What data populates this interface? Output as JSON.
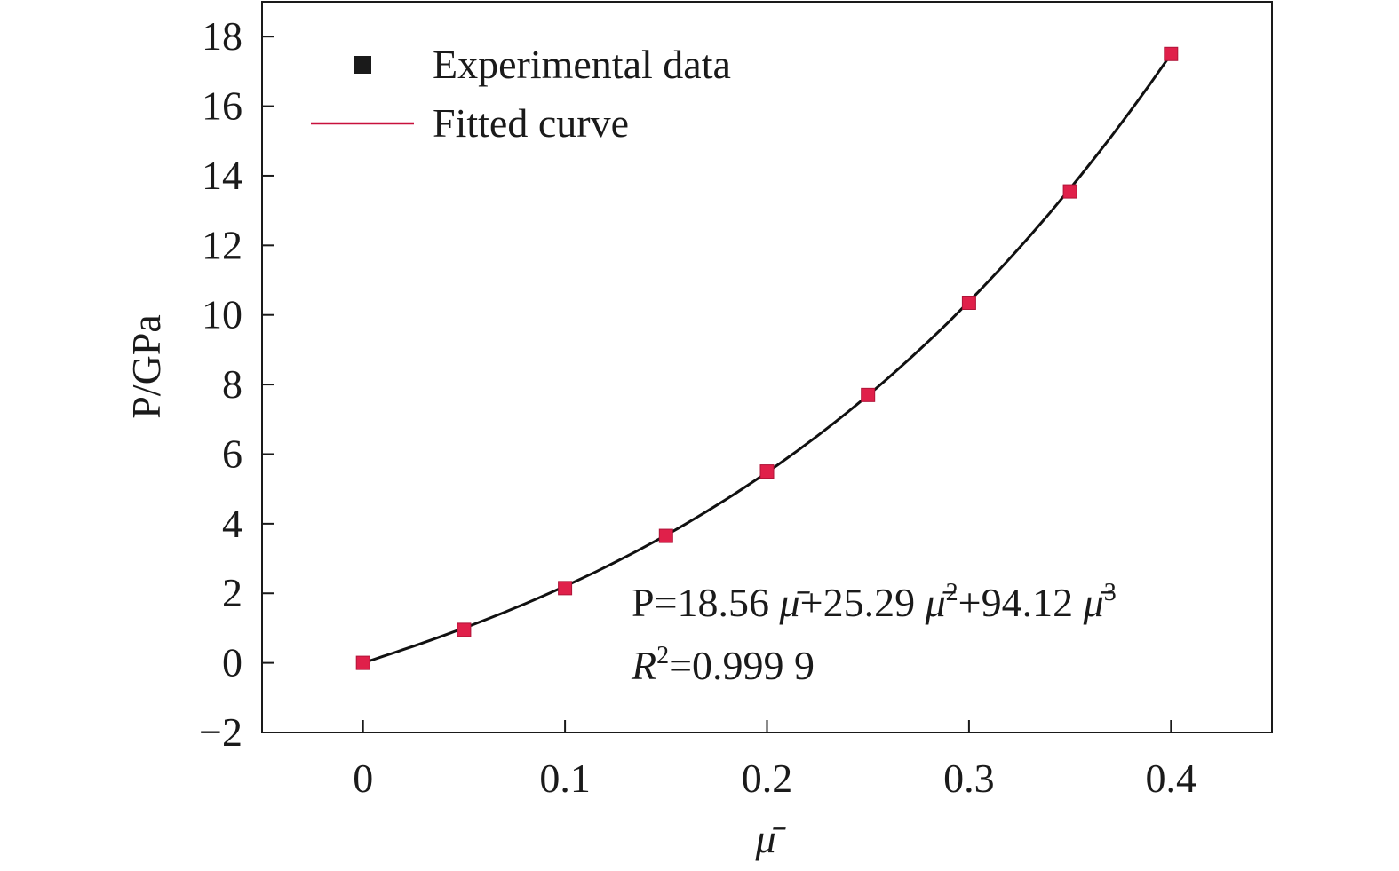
{
  "chart_data": {
    "type": "scatter",
    "title": "",
    "xlabel": "μ̄",
    "ylabel": "P/GPa",
    "xlim": [
      -0.05,
      0.45
    ],
    "ylim": [
      -2,
      19
    ],
    "x_ticks": [
      0,
      0.1,
      0.2,
      0.3,
      0.4
    ],
    "x_tick_labels": [
      "0",
      "0.1",
      "0.2",
      "0.3",
      "0.4"
    ],
    "y_ticks": [
      -2,
      0,
      2,
      4,
      6,
      8,
      10,
      12,
      14,
      16,
      18
    ],
    "y_tick_labels": [
      "−2",
      "0",
      "2",
      "4",
      "6",
      "8",
      "10",
      "12",
      "14",
      "16",
      "18"
    ],
    "grid": false,
    "legend_position": "top-left",
    "series": [
      {
        "name": "Experimental data",
        "kind": "markers",
        "marker": "square",
        "color": "#e0204a",
        "legend_color": "#1a1a1a",
        "x": [
          0,
          0.05,
          0.1,
          0.15,
          0.2,
          0.25,
          0.3,
          0.35,
          0.4
        ],
        "y": [
          0,
          0.95,
          2.15,
          3.65,
          5.5,
          7.7,
          10.35,
          13.55,
          17.5
        ]
      },
      {
        "name": "Fitted curve",
        "kind": "line",
        "color": "#111111",
        "legend_color": "#c8103c",
        "equation": {
          "a1": 18.56,
          "a2": 25.29,
          "a3": 94.12
        }
      }
    ],
    "annotations": {
      "equation_text": {
        "p": "P=18.56 ",
        "mu": "μ̄",
        "plus1": "+25.29 ",
        "plus2": "+94.12 ",
        "exp2": "2",
        "exp3": "3"
      },
      "r2_text": {
        "r": "R",
        "exp": "2",
        "value": "=0.999 9"
      }
    }
  }
}
